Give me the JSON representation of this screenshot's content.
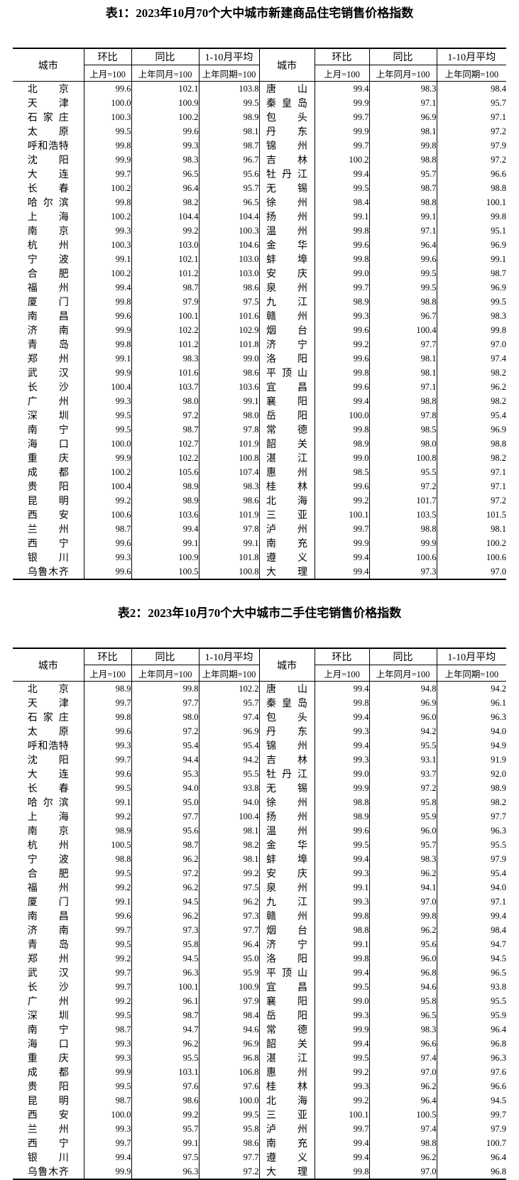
{
  "tables": [
    {
      "title": "表1：2023年10月70个大中城市新建商品住宅销售价格指数",
      "header": {
        "city": "城市",
        "mom": "环比",
        "mom_base": "上月=100",
        "yoy": "同比",
        "yoy_base": "上年同月=100",
        "avg": "1-10月平均",
        "avg_base": "上年同期=100"
      },
      "rows": [
        [
          "北京",
          "99.6",
          "102.1",
          "103.8",
          "唐山",
          "99.4",
          "98.3",
          "98.4"
        ],
        [
          "天津",
          "100.0",
          "100.9",
          "99.5",
          "秦皇岛",
          "99.9",
          "97.1",
          "95.7"
        ],
        [
          "石家庄",
          "100.3",
          "100.2",
          "98.9",
          "包头",
          "99.7",
          "96.9",
          "97.1"
        ],
        [
          "太原",
          "99.5",
          "99.6",
          "98.1",
          "丹东",
          "99.9",
          "98.1",
          "97.2"
        ],
        [
          "呼和浩特",
          "99.8",
          "99.3",
          "98.7",
          "锦州",
          "99.7",
          "99.8",
          "97.9"
        ],
        [
          "沈阳",
          "99.9",
          "98.3",
          "96.7",
          "吉林",
          "100.2",
          "98.8",
          "97.2"
        ],
        [
          "大连",
          "99.7",
          "96.5",
          "95.6",
          "牡丹江",
          "99.4",
          "95.7",
          "96.6"
        ],
        [
          "长春",
          "100.2",
          "96.4",
          "95.7",
          "无锡",
          "99.5",
          "98.7",
          "98.8"
        ],
        [
          "哈尔滨",
          "99.8",
          "98.2",
          "96.5",
          "徐州",
          "98.4",
          "98.8",
          "100.1"
        ],
        [
          "上海",
          "100.2",
          "104.4",
          "104.4",
          "扬州",
          "99.1",
          "99.1",
          "99.8"
        ],
        [
          "南京",
          "99.3",
          "99.2",
          "100.3",
          "温州",
          "99.8",
          "97.1",
          "95.1"
        ],
        [
          "杭州",
          "100.3",
          "103.0",
          "104.6",
          "金华",
          "99.6",
          "96.4",
          "96.9"
        ],
        [
          "宁波",
          "99.1",
          "102.1",
          "103.0",
          "蚌埠",
          "99.8",
          "99.6",
          "99.1"
        ],
        [
          "合肥",
          "100.2",
          "101.2",
          "103.0",
          "安庆",
          "99.0",
          "99.5",
          "98.7"
        ],
        [
          "福州",
          "99.4",
          "98.7",
          "98.6",
          "泉州",
          "99.7",
          "99.5",
          "96.9"
        ],
        [
          "厦门",
          "99.8",
          "97.9",
          "97.5",
          "九江",
          "98.9",
          "98.8",
          "99.5"
        ],
        [
          "南昌",
          "99.6",
          "100.1",
          "101.6",
          "赣州",
          "99.3",
          "96.7",
          "98.3"
        ],
        [
          "济南",
          "99.9",
          "102.2",
          "102.9",
          "烟台",
          "99.6",
          "100.4",
          "99.8"
        ],
        [
          "青岛",
          "99.8",
          "101.2",
          "101.8",
          "济宁",
          "99.2",
          "97.7",
          "97.0"
        ],
        [
          "郑州",
          "99.1",
          "98.3",
          "99.0",
          "洛阳",
          "99.6",
          "98.1",
          "97.4"
        ],
        [
          "武汉",
          "99.9",
          "101.6",
          "98.6",
          "平顶山",
          "99.8",
          "98.1",
          "98.2"
        ],
        [
          "长沙",
          "100.4",
          "103.7",
          "103.6",
          "宜昌",
          "99.6",
          "97.1",
          "96.2"
        ],
        [
          "广州",
          "99.3",
          "98.0",
          "99.1",
          "襄阳",
          "99.4",
          "98.8",
          "98.2"
        ],
        [
          "深圳",
          "99.5",
          "97.2",
          "98.0",
          "岳阳",
          "100.0",
          "97.8",
          "95.4"
        ],
        [
          "南宁",
          "99.5",
          "98.7",
          "97.8",
          "常德",
          "99.8",
          "98.5",
          "96.9"
        ],
        [
          "海口",
          "100.0",
          "102.7",
          "101.9",
          "韶关",
          "98.9",
          "98.0",
          "98.8"
        ],
        [
          "重庆",
          "99.9",
          "102.2",
          "100.8",
          "湛江",
          "99.0",
          "100.8",
          "98.2"
        ],
        [
          "成都",
          "100.2",
          "105.6",
          "107.4",
          "惠州",
          "98.5",
          "95.5",
          "97.1"
        ],
        [
          "贵阳",
          "100.4",
          "98.9",
          "98.3",
          "桂林",
          "99.6",
          "97.2",
          "97.1"
        ],
        [
          "昆明",
          "99.2",
          "98.9",
          "98.6",
          "北海",
          "99.2",
          "101.7",
          "97.2"
        ],
        [
          "西安",
          "100.6",
          "103.6",
          "101.9",
          "三亚",
          "100.1",
          "103.5",
          "101.5"
        ],
        [
          "兰州",
          "98.7",
          "99.4",
          "97.8",
          "泸州",
          "99.7",
          "98.8",
          "98.1"
        ],
        [
          "西宁",
          "99.6",
          "99.1",
          "99.1",
          "南充",
          "99.9",
          "99.9",
          "100.2"
        ],
        [
          "银川",
          "99.3",
          "100.9",
          "101.8",
          "遵义",
          "99.4",
          "100.6",
          "100.6"
        ],
        [
          "乌鲁木齐",
          "99.6",
          "100.5",
          "100.8",
          "大理",
          "99.4",
          "97.3",
          "97.0"
        ]
      ]
    },
    {
      "title": "表2：2023年10月70个大中城市二手住宅销售价格指数",
      "header": {
        "city": "城市",
        "mom": "环比",
        "mom_base": "上月=100",
        "yoy": "同比",
        "yoy_base": "上年同月=100",
        "avg": "1-10月平均",
        "avg_base": "上年同期=100"
      },
      "rows": [
        [
          "北京",
          "98.9",
          "99.8",
          "102.2",
          "唐山",
          "99.4",
          "94.8",
          "94.2"
        ],
        [
          "天津",
          "99.7",
          "97.7",
          "95.7",
          "秦皇岛",
          "99.8",
          "96.9",
          "96.1"
        ],
        [
          "石家庄",
          "99.8",
          "98.0",
          "97.4",
          "包头",
          "99.4",
          "96.0",
          "96.3"
        ],
        [
          "太原",
          "99.6",
          "97.2",
          "96.9",
          "丹东",
          "99.3",
          "94.2",
          "94.0"
        ],
        [
          "呼和浩特",
          "99.3",
          "95.4",
          "95.4",
          "锦州",
          "99.4",
          "95.5",
          "94.9"
        ],
        [
          "沈阳",
          "99.7",
          "94.4",
          "94.2",
          "吉林",
          "99.3",
          "93.1",
          "91.9"
        ],
        [
          "大连",
          "99.6",
          "95.3",
          "95.5",
          "牡丹江",
          "99.0",
          "93.7",
          "92.0"
        ],
        [
          "长春",
          "99.5",
          "94.0",
          "93.8",
          "无锡",
          "99.9",
          "97.2",
          "98.9"
        ],
        [
          "哈尔滨",
          "99.1",
          "95.0",
          "94.0",
          "徐州",
          "98.8",
          "95.8",
          "98.2"
        ],
        [
          "上海",
          "99.2",
          "97.7",
          "100.4",
          "扬州",
          "98.9",
          "95.9",
          "97.7"
        ],
        [
          "南京",
          "98.9",
          "95.6",
          "98.1",
          "温州",
          "99.6",
          "96.0",
          "96.3"
        ],
        [
          "杭州",
          "100.5",
          "98.7",
          "98.2",
          "金华",
          "99.5",
          "95.7",
          "95.5"
        ],
        [
          "宁波",
          "98.8",
          "96.2",
          "98.1",
          "蚌埠",
          "99.4",
          "98.3",
          "97.9"
        ],
        [
          "合肥",
          "99.5",
          "97.2",
          "99.2",
          "安庆",
          "99.3",
          "96.2",
          "95.4"
        ],
        [
          "福州",
          "99.2",
          "96.2",
          "97.5",
          "泉州",
          "99.1",
          "94.1",
          "94.0"
        ],
        [
          "厦门",
          "99.1",
          "94.5",
          "96.2",
          "九江",
          "99.3",
          "97.0",
          "97.1"
        ],
        [
          "南昌",
          "99.6",
          "96.2",
          "97.3",
          "赣州",
          "99.8",
          "99.8",
          "99.4"
        ],
        [
          "济南",
          "99.7",
          "97.3",
          "97.7",
          "烟台",
          "98.8",
          "96.2",
          "98.4"
        ],
        [
          "青岛",
          "99.5",
          "95.8",
          "96.4",
          "济宁",
          "99.1",
          "95.6",
          "94.7"
        ],
        [
          "郑州",
          "99.2",
          "94.5",
          "95.0",
          "洛阳",
          "99.8",
          "96.0",
          "94.5"
        ],
        [
          "武汉",
          "99.7",
          "96.3",
          "95.9",
          "平顶山",
          "99.4",
          "96.8",
          "96.5"
        ],
        [
          "长沙",
          "99.7",
          "100.1",
          "100.9",
          "宜昌",
          "99.5",
          "94.6",
          "93.8"
        ],
        [
          "广州",
          "99.2",
          "96.1",
          "97.9",
          "襄阳",
          "99.0",
          "95.8",
          "95.5"
        ],
        [
          "深圳",
          "99.5",
          "98.7",
          "98.4",
          "岳阳",
          "99.3",
          "96.5",
          "95.9"
        ],
        [
          "南宁",
          "98.7",
          "94.7",
          "94.6",
          "常德",
          "99.9",
          "98.3",
          "96.4"
        ],
        [
          "海口",
          "99.3",
          "96.2",
          "96.9",
          "韶关",
          "99.4",
          "96.6",
          "96.8"
        ],
        [
          "重庆",
          "99.3",
          "95.5",
          "96.8",
          "湛江",
          "99.5",
          "97.4",
          "96.3"
        ],
        [
          "成都",
          "99.9",
          "103.1",
          "106.8",
          "惠州",
          "99.2",
          "97.0",
          "97.6"
        ],
        [
          "贵阳",
          "99.5",
          "97.6",
          "97.6",
          "桂林",
          "99.3",
          "96.2",
          "96.6"
        ],
        [
          "昆明",
          "98.7",
          "98.6",
          "100.0",
          "北海",
          "99.2",
          "96.4",
          "94.5"
        ],
        [
          "西安",
          "100.0",
          "99.2",
          "99.5",
          "三亚",
          "100.1",
          "100.5",
          "99.7"
        ],
        [
          "兰州",
          "99.3",
          "95.7",
          "95.8",
          "泸州",
          "99.7",
          "97.4",
          "97.9"
        ],
        [
          "西宁",
          "99.7",
          "99.1",
          "98.6",
          "南充",
          "99.4",
          "98.8",
          "100.7"
        ],
        [
          "银川",
          "99.4",
          "97.5",
          "97.7",
          "遵义",
          "99.4",
          "96.2",
          "96.4"
        ],
        [
          "乌鲁木齐",
          "99.9",
          "96.3",
          "97.2",
          "大理",
          "99.8",
          "97.0",
          "96.8"
        ]
      ]
    }
  ]
}
